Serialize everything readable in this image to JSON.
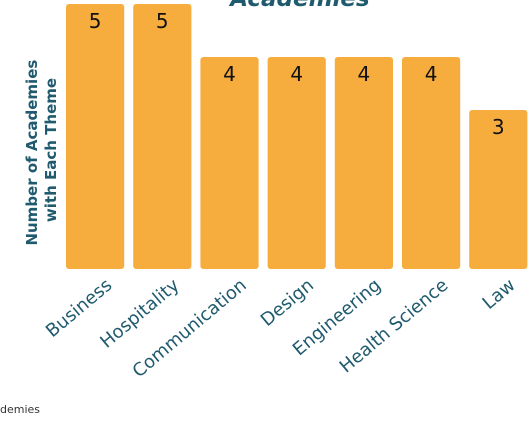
{
  "chart_data": {
    "type": "bar",
    "title": "Academies",
    "ylabel_lines": [
      "Number of Academies",
      "with Each Theme"
    ],
    "xlabel": "",
    "categories": [
      "Business",
      "Hospitality",
      "Communication",
      "Design",
      "Engineering",
      "Health Science",
      "Law"
    ],
    "values": [
      5,
      5,
      4,
      4,
      4,
      4,
      3
    ],
    "ylim": [
      0,
      5
    ],
    "grid": false,
    "legend": "none",
    "bar_color": "#f6ad3d"
  },
  "footer": {
    "source_text": "demies"
  }
}
